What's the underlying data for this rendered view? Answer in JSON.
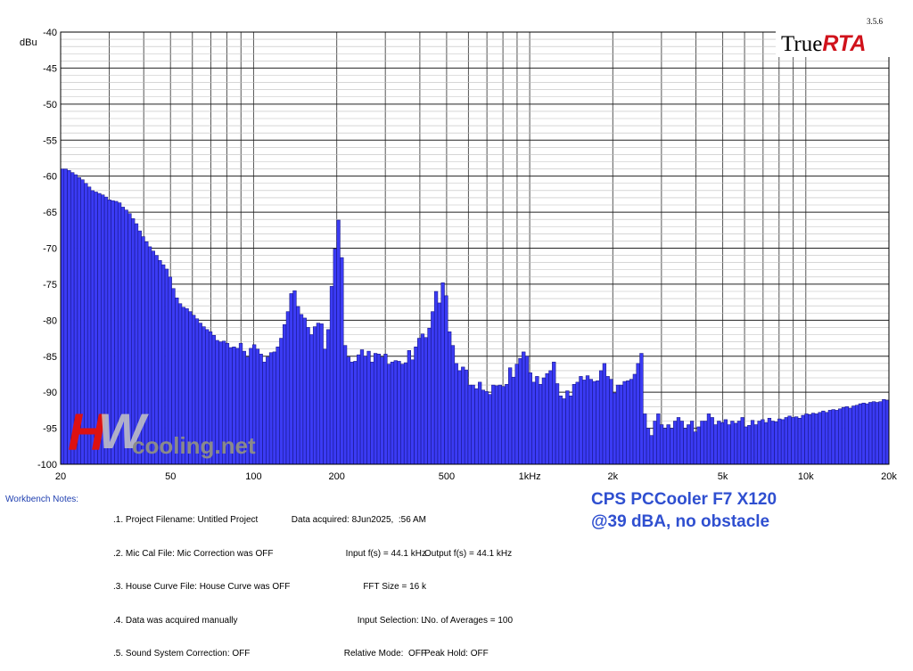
{
  "version": "3.5.6",
  "brand": {
    "true": "True",
    "rta": "RTA"
  },
  "watermark": {
    "h": "H",
    "w": "W",
    "site": "cooling.net"
  },
  "caption": {
    "line1": "CPS PCCooler F7 X120",
    "line2": "@39 dBA, no obstacle"
  },
  "workbench": {
    "label": "Workbench Notes:",
    "col1": [
      ".1. Project Filename: Untitled Project",
      ".2. Mic Cal File: Mic Correction was OFF",
      ".3. House Curve File: House Curve was OFF",
      ".4. Data was acquired manually",
      ".5. Sound System Correction: OFF"
    ],
    "col2": [
      "Data acquired: 8Jun2025,  :56 AM",
      "Input f(s) = 44.1 kHz",
      "FFT Size = 16 k",
      "Input Selection: L",
      "Relative Mode:  OFF"
    ],
    "col3": [
      "",
      "Output f(s) = 44.1 kHz",
      "",
      "No. of Averages = 100",
      "Peak Hold: OFF"
    ]
  },
  "colors": {
    "bar": "#3b3bf4",
    "bar_edge": "#10107a",
    "grid": "#555555",
    "caption": "#2f4fd0",
    "brand_red": "#d0121b"
  },
  "chart_data": {
    "type": "bar",
    "title": "",
    "ylabel": "dBu",
    "xlabel": "",
    "xscale": "log",
    "xlim": [
      20,
      20000
    ],
    "ylim": [
      -100,
      -40
    ],
    "grid": true,
    "y_ticks": [
      "-40",
      "-45",
      "-50",
      "-55",
      "-60",
      "-65",
      "-70",
      "-75",
      "-80",
      "-85",
      "-90",
      "-95",
      "-100"
    ],
    "x_ticks": [
      {
        "f": 20,
        "label": "20"
      },
      {
        "f": 50,
        "label": "50"
      },
      {
        "f": 100,
        "label": "100"
      },
      {
        "f": 200,
        "label": "200"
      },
      {
        "f": 500,
        "label": "500"
      },
      {
        "f": 1000,
        "label": "1kHz"
      },
      {
        "f": 2000,
        "label": "2k"
      },
      {
        "f": 5000,
        "label": "5k"
      },
      {
        "f": 10000,
        "label": "10k"
      },
      {
        "f": 20000,
        "label": "20k"
      }
    ],
    "series": [
      {
        "values": [
          -59.0,
          -59.0,
          -59.2,
          -59.5,
          -59.8,
          -60.2,
          -60.5,
          -61,
          -61.5,
          -62,
          -62.2,
          -62.4,
          -62.6,
          -62.9,
          -63.3,
          -63.4,
          -63.5,
          -63.7,
          -64.3,
          -64.7,
          -65.2,
          -65.9,
          -66.6,
          -67.6,
          -68.4,
          -69.1,
          -69.8,
          -70.4,
          -71.0,
          -71.7,
          -72.3,
          -72.9,
          -74.0,
          -75.6,
          -76.9,
          -77.7,
          -78.2,
          -78.4,
          -78.8,
          -79.3,
          -79.8,
          -80.4,
          -80.9,
          -81.3,
          -81.6,
          -82.1,
          -82.8,
          -83.0,
          -82.9,
          -83.2,
          -83.8,
          -83.7,
          -83.9,
          -83.2,
          -84.3,
          -85.1,
          -83.9,
          -83.4,
          -84.0,
          -84.7,
          -85.8,
          -85.1,
          -84.5,
          -84.4,
          -83.7,
          -82.5,
          -80.6,
          -78.8,
          -76.3,
          -75.9,
          -78.1,
          -79.2,
          -79.7,
          -81.0,
          -82.0,
          -80.9,
          -80.4,
          -80.5,
          -84.0,
          -81.3,
          -75.3,
          -70.1,
          -66.1,
          -71.3,
          -83.5,
          -85.1,
          -85.8,
          -85.7,
          -84.8,
          -84.1,
          -85.0,
          -84.3,
          -85.8,
          -84.6,
          -84.7,
          -85.1,
          -84.7,
          -86.1,
          -85.8,
          -85.6,
          -85.7,
          -86.1,
          -85.9,
          -84.2,
          -85.5,
          -83.7,
          -82.5,
          -81.9,
          -82.4,
          -81.1,
          -78.8,
          -76.0,
          -77.6,
          -74.8,
          -76.6,
          -81.6,
          -83.5,
          -86.0,
          -87.0,
          -86.5,
          -86.9,
          -89.0,
          -89.0,
          -89.5,
          -88.6,
          -89.7,
          -89.9,
          -90.3,
          -89.0,
          -89.1,
          -89.0,
          -89.2,
          -88.9,
          -86.6,
          -87.9,
          -86.1,
          -85.3,
          -84.4,
          -85.0,
          -87.3,
          -88.6,
          -87.8,
          -88.9,
          -88.0,
          -87.4,
          -87.0,
          -85.8,
          -88.8,
          -90.5,
          -90.9,
          -89.8,
          -90.5,
          -88.9,
          -88.6,
          -87.8,
          -88.3,
          -87.7,
          -88.2,
          -88.5,
          -88.4,
          -87.0,
          -86.0,
          -87.8,
          -88.2,
          -90.1,
          -89.0,
          -89.0,
          -88.5,
          -88.4,
          -88.2,
          -87.5,
          -86.0,
          -84.6,
          -93.0,
          -95.0,
          -96.0,
          -94.0,
          -93.0,
          -94.5,
          -95.0,
          -94.5,
          -95.0,
          -94.0,
          -93.5,
          -94.0,
          -95.0,
          -94.5,
          -94.0,
          -95.5,
          -94.8,
          -94.0,
          -94.0,
          -93.0,
          -93.5,
          -94.5,
          -94.0,
          -94.2,
          -93.8,
          -94.5,
          -94.0,
          -94.3,
          -94.0,
          -93.5,
          -94.8,
          -94.6,
          -93.9,
          -94.5,
          -94.0,
          -93.8,
          -94.2,
          -93.6,
          -94.0,
          -94.1,
          -93.7,
          -93.8,
          -93.5,
          -93.3,
          -93.5,
          -93.4,
          -93.6,
          -93.2,
          -93.0,
          -93.1,
          -92.9,
          -93.0,
          -92.8,
          -92.6,
          -92.8,
          -92.5,
          -92.4,
          -92.5,
          -92.3,
          -92.1,
          -92.0,
          -92.2,
          -91.9,
          -91.8,
          -91.6,
          -91.5,
          -91.6,
          -91.4,
          -91.3,
          -91.4,
          -91.3,
          -91.0,
          -91.1
        ]
      }
    ]
  }
}
